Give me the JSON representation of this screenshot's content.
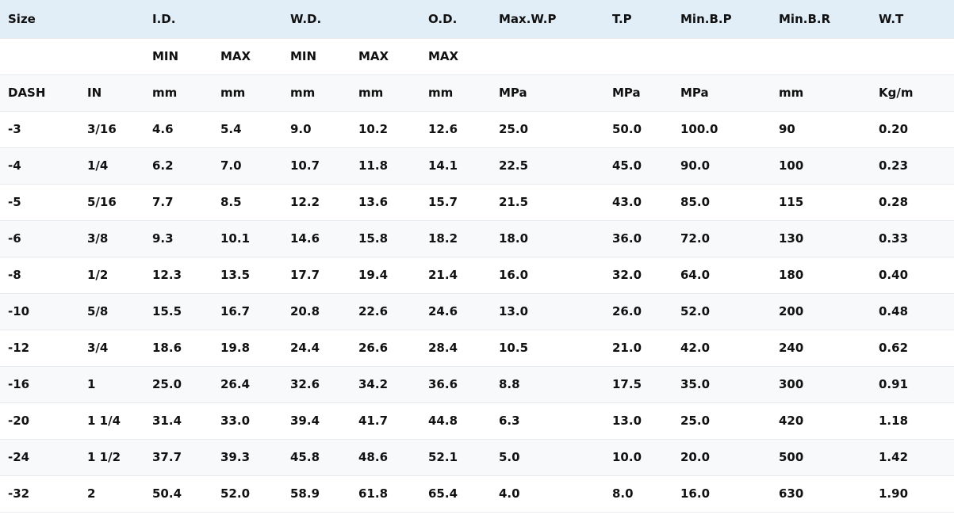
{
  "table": {
    "title_row": [
      "Size",
      "",
      "I.D.",
      "",
      "W.D.",
      "",
      "O.D.",
      "Max.W.P",
      "T.P",
      "Min.B.P",
      "Min.B.R",
      "W.T"
    ],
    "sub_row": [
      "",
      "",
      "MIN",
      "MAX",
      "MIN",
      "MAX",
      "MAX",
      "",
      "",
      "",
      "",
      ""
    ],
    "unit_row": [
      "DASH",
      "IN",
      "mm",
      "mm",
      "mm",
      "mm",
      "mm",
      "MPa",
      "MPa",
      "MPa",
      "mm",
      "Kg/m"
    ],
    "rows": [
      [
        "-3",
        "3/16",
        "4.6",
        "5.4",
        "9.0",
        "10.2",
        "12.6",
        "25.0",
        "50.0",
        "100.0",
        "90",
        "0.20"
      ],
      [
        "-4",
        "1/4",
        "6.2",
        "7.0",
        "10.7",
        "11.8",
        "14.1",
        "22.5",
        "45.0",
        "90.0",
        "100",
        "0.23"
      ],
      [
        "-5",
        "5/16",
        "7.7",
        "8.5",
        "12.2",
        "13.6",
        "15.7",
        "21.5",
        "43.0",
        "85.0",
        "115",
        "0.28"
      ],
      [
        "-6",
        "3/8",
        "9.3",
        "10.1",
        "14.6",
        "15.8",
        "18.2",
        "18.0",
        "36.0",
        "72.0",
        "130",
        "0.33"
      ],
      [
        "-8",
        "1/2",
        "12.3",
        "13.5",
        "17.7",
        "19.4",
        "21.4",
        "16.0",
        "32.0",
        "64.0",
        "180",
        "0.40"
      ],
      [
        "-10",
        "5/8",
        "15.5",
        "16.7",
        "20.8",
        "22.6",
        "24.6",
        "13.0",
        "26.0",
        "52.0",
        "200",
        "0.48"
      ],
      [
        "-12",
        "3/4",
        "18.6",
        "19.8",
        "24.4",
        "26.6",
        "28.4",
        "10.5",
        "21.0",
        "42.0",
        "240",
        "0.62"
      ],
      [
        "-16",
        "1",
        "25.0",
        "26.4",
        "32.6",
        "34.2",
        "36.6",
        "8.8",
        "17.5",
        "35.0",
        "300",
        "0.91"
      ],
      [
        "-20",
        "1 1/4",
        "31.4",
        "33.0",
        "39.4",
        "41.7",
        "44.8",
        "6.3",
        "13.0",
        "25.0",
        "420",
        "1.18"
      ],
      [
        "-24",
        "1 1/2",
        "37.7",
        "39.3",
        "45.8",
        "48.6",
        "52.1",
        "5.0",
        "10.0",
        "20.0",
        "500",
        "1.42"
      ],
      [
        "-32",
        "2",
        "50.4",
        "52.0",
        "58.9",
        "61.8",
        "65.4",
        "4.0",
        "8.0",
        "16.0",
        "630",
        "1.90"
      ]
    ]
  }
}
